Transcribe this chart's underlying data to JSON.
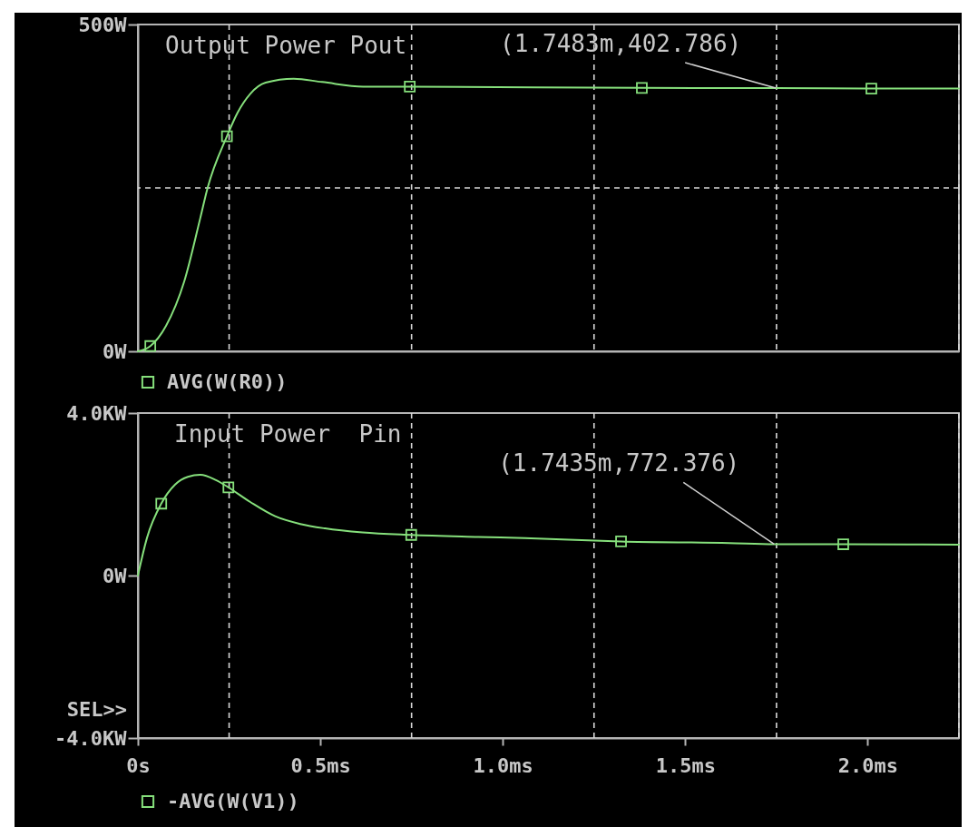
{
  "chart_data": [
    {
      "type": "line",
      "title": "Output Power Pout",
      "xlim": [
        0,
        2.25
      ],
      "ylim": [
        0,
        500
      ],
      "yticks": [
        {
          "value": 0,
          "label": "0W"
        },
        {
          "value": 500,
          "label": "500W"
        }
      ],
      "tick_labels": "y",
      "legend": "bottom",
      "ref_lines": [
        {
          "axis": "x",
          "value": 0.25,
          "line_style": "dashed"
        },
        {
          "axis": "x",
          "value": 0.75,
          "line_style": "dashed"
        },
        {
          "axis": "x",
          "value": 1.25,
          "line_style": "dashed"
        },
        {
          "axis": "x",
          "value": 1.75,
          "line_style": "dashed"
        },
        {
          "axis": "x",
          "value": 2.25,
          "line_style": "dashed"
        },
        {
          "axis": "y",
          "value": 250,
          "line_style": "dashed"
        }
      ],
      "series": [
        {
          "name": "AVG(W(R0))",
          "type": "line",
          "color": "#86e07c",
          "x": [
            0,
            0.034,
            0.077,
            0.127,
            0.171,
            0.191,
            0.244,
            0.273,
            0.308,
            0.35,
            0.427,
            0.505,
            0.617,
            0.745,
            1.381,
            1.7483,
            2.01,
            2.25
          ],
          "values": [
            0,
            8,
            39,
            107,
            204,
            250,
            329,
            365,
            394,
            411,
            417,
            412,
            405,
            405,
            403,
            402.786,
            402,
            402
          ]
        },
        {
          "type": "scatter",
          "marker": "square",
          "color": "#86e07c",
          "x": [
            0.034,
            0.244,
            0.745,
            1.381,
            2.01
          ],
          "values": [
            8,
            329,
            405,
            403,
            402
          ]
        }
      ],
      "annotations": [
        {
          "text": "(1.7483m,402.786)",
          "x": 1.7483,
          "y": 402.786
        }
      ]
    },
    {
      "type": "line",
      "title": "Input Power  Pin",
      "xlim": [
        0,
        2.25
      ],
      "xticks": [
        {
          "value": 0,
          "label": "0s"
        },
        {
          "value": 0.5,
          "label": "0.5ms"
        },
        {
          "value": 1,
          "label": "1.0ms"
        },
        {
          "value": 1.5,
          "label": "1.5ms"
        },
        {
          "value": 2,
          "label": "2.0ms"
        }
      ],
      "ylim": [
        -4,
        4
      ],
      "yticks": [
        {
          "value": -4,
          "label": "-4.0KW"
        },
        {
          "value": 0,
          "label": "0W"
        },
        {
          "value": 4,
          "label": "4.0KW"
        }
      ],
      "legend": "bottom",
      "ref_lines": [
        {
          "axis": "x",
          "value": 0.25,
          "line_style": "dashed"
        },
        {
          "axis": "x",
          "value": 0.75,
          "line_style": "dashed"
        },
        {
          "axis": "x",
          "value": 1.25,
          "line_style": "dashed"
        },
        {
          "axis": "x",
          "value": 1.75,
          "line_style": "dashed"
        },
        {
          "axis": "x",
          "value": 2.25,
          "line_style": "dashed"
        }
      ],
      "series": [
        {
          "name": "-AVG(W(V1))",
          "type": "line",
          "color": "#86e07c",
          "x": [
            0,
            0.025,
            0.064,
            0.102,
            0.137,
            0.171,
            0.214,
            0.248,
            0.308,
            0.376,
            0.445,
            0.513,
            0.616,
            0.749,
            0.933,
            1.06,
            1.324,
            1.62,
            1.7435,
            1.933,
            2.25
          ],
          "values": [
            0,
            0.93,
            1.77,
            2.24,
            2.43,
            2.48,
            2.35,
            2.17,
            1.81,
            1.46,
            1.27,
            1.16,
            1.06,
            1.0,
            0.95,
            0.92,
            0.84,
            0.8,
            0.772376,
            0.77,
            0.76
          ]
        },
        {
          "type": "scatter",
          "marker": "square",
          "color": "#86e07c",
          "x": [
            0.064,
            0.248,
            0.749,
            1.324,
            1.933
          ],
          "values": [
            1.77,
            2.17,
            1.0,
            0.84,
            0.77
          ]
        }
      ],
      "annotations": [
        "SEL>>",
        {
          "text": "(1.7435m,772.376)",
          "x": 1.7435,
          "y": 0.772376
        }
      ]
    }
  ]
}
